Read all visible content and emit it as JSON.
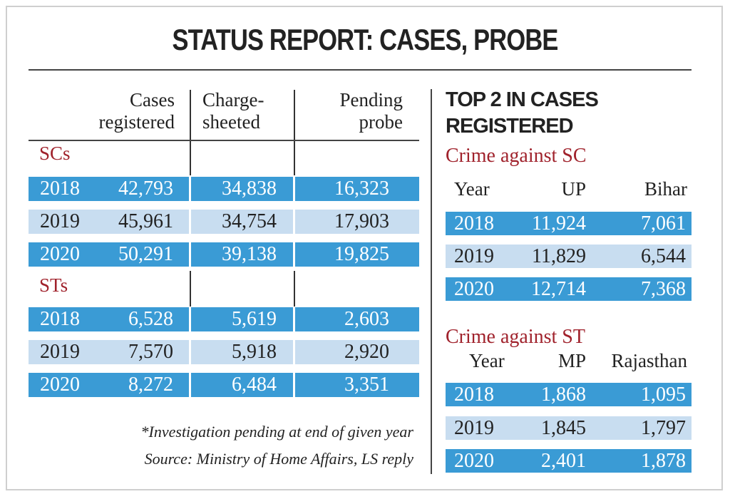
{
  "title": "STATUS REPORT: CASES, PROBE",
  "colors": {
    "dark_row": "#3a9bd5",
    "light_row": "#c8ddf0",
    "section": "#a0222c"
  },
  "chart_data": [
    {
      "type": "table",
      "headers": [
        "",
        "Cases registered",
        "Charge-sheeted",
        "Pending probe"
      ],
      "header_lines": [
        [
          "Cases",
          "registered"
        ],
        [
          "Charge-",
          "sheeted"
        ],
        [
          "Pending",
          "probe"
        ]
      ],
      "sections": [
        {
          "label": "SCs",
          "rows": [
            {
              "year": "2018",
              "values": [
                "42,793",
                "34,838",
                "16,323"
              ]
            },
            {
              "year": "2019",
              "values": [
                "45,961",
                "34,754",
                "17,903"
              ]
            },
            {
              "year": "2020",
              "values": [
                "50,291",
                "39,138",
                "19,825"
              ]
            }
          ]
        },
        {
          "label": "STs",
          "rows": [
            {
              "year": "2018",
              "values": [
                "6,528",
                "5,619",
                "2,603"
              ]
            },
            {
              "year": "2019",
              "values": [
                "7,570",
                "5,918",
                "2,920"
              ]
            },
            {
              "year": "2020",
              "values": [
                "8,272",
                "6,484",
                "3,351"
              ]
            }
          ]
        }
      ],
      "notes": [
        "*Investigation pending at end of given year",
        "Source: Ministry of Home Affairs, LS reply"
      ]
    },
    {
      "type": "table",
      "title_lines": [
        "TOP 2 IN CASES",
        "REGISTERED"
      ],
      "sections": [
        {
          "label": "Crime against SC",
          "columns": [
            "Year",
            "UP",
            "Bihar"
          ],
          "rows": [
            [
              "2018",
              "11,924",
              "7,061"
            ],
            [
              "2019",
              "11,829",
              "6,544"
            ],
            [
              "2020",
              "12,714",
              "7,368"
            ]
          ]
        },
        {
          "label": "Crime against ST",
          "columns": [
            "Year",
            "MP",
            "Rajasthan"
          ],
          "rows": [
            [
              "2018",
              "1,868",
              "1,095"
            ],
            [
              "2019",
              "1,845",
              "1,797"
            ],
            [
              "2020",
              "2,401",
              "1,878"
            ]
          ]
        }
      ]
    }
  ]
}
